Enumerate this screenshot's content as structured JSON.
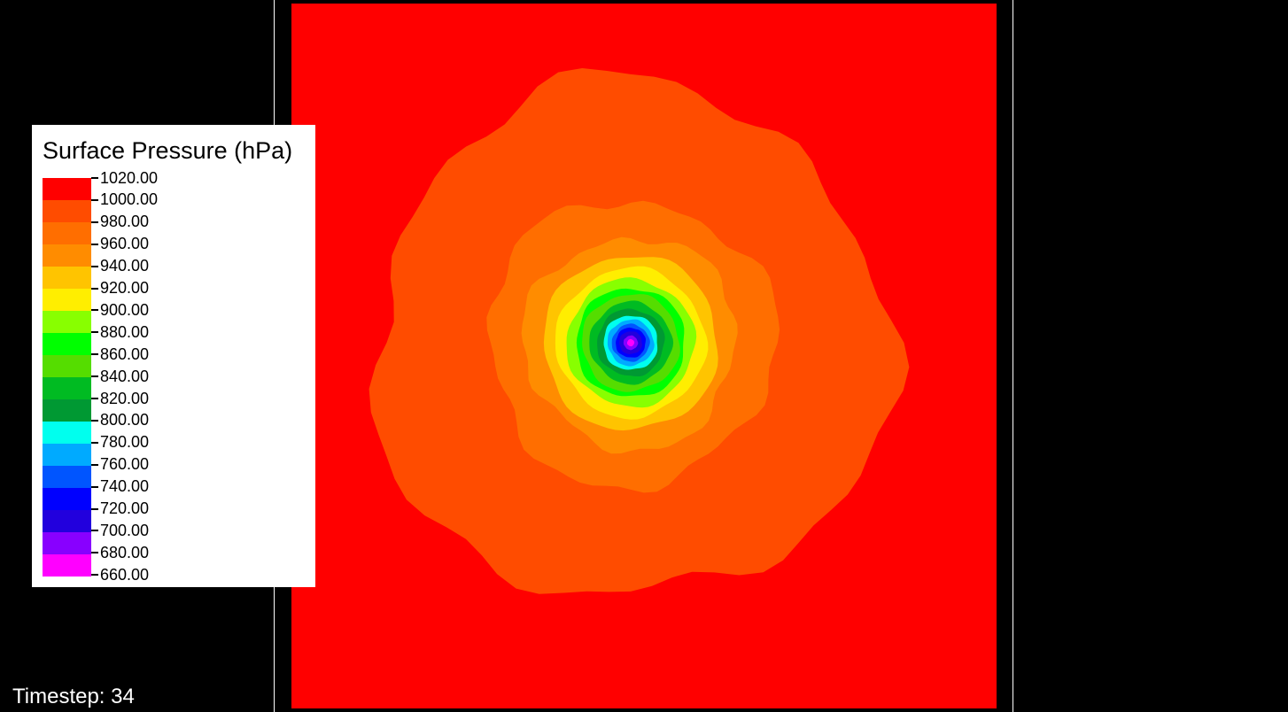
{
  "legend": {
    "title": "Surface Pressure (hPa)",
    "ticks": [
      "1020.00",
      "1000.00",
      "980.00",
      "960.00",
      "940.00",
      "920.00",
      "900.00",
      "880.00",
      "860.00",
      "840.00",
      "820.00",
      "800.00",
      "780.00",
      "760.00",
      "740.00",
      "720.00",
      "700.00",
      "680.00",
      "660.00"
    ],
    "colors": [
      "#ff0000",
      "#ff4c00",
      "#ff6e00",
      "#ff8c00",
      "#ffc400",
      "#ffee00",
      "#88ff00",
      "#00ff00",
      "#55dd00",
      "#00bb22",
      "#009933",
      "#00ffee",
      "#00aaff",
      "#0055ff",
      "#0000ff",
      "#2200dd",
      "#8800ff",
      "#ff00ff"
    ]
  },
  "status": {
    "timestep_label": "Timestep: 34"
  },
  "field": {
    "background_color": "#ff0000",
    "contour_levels": [
      {
        "value": 1000,
        "color": "#ff4c00"
      },
      {
        "value": 980,
        "color": "#ff6e00"
      },
      {
        "value": 960,
        "color": "#ff8c00"
      },
      {
        "value": 940,
        "color": "#ffc400"
      },
      {
        "value": 920,
        "color": "#ffee00"
      },
      {
        "value": 900,
        "color": "#88ff00"
      },
      {
        "value": 880,
        "color": "#00ff00"
      },
      {
        "value": 860,
        "color": "#55dd00"
      },
      {
        "value": 840,
        "color": "#00bb22"
      },
      {
        "value": 820,
        "color": "#009933"
      },
      {
        "value": 800,
        "color": "#00ffee"
      },
      {
        "value": 780,
        "color": "#00aaff"
      },
      {
        "value": 760,
        "color": "#0055ff"
      },
      {
        "value": 740,
        "color": "#0000ff"
      },
      {
        "value": 720,
        "color": "#2200dd"
      },
      {
        "value": 700,
        "color": "#8800ff"
      },
      {
        "value": 680,
        "color": "#ff00ff"
      }
    ]
  }
}
